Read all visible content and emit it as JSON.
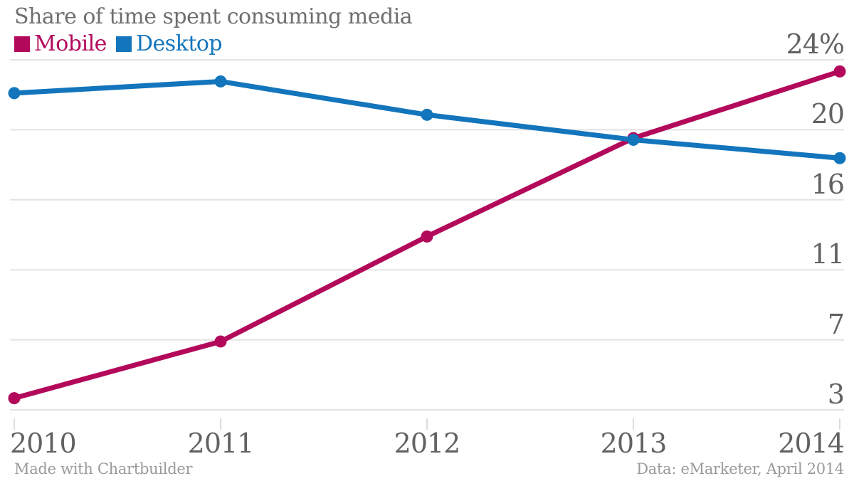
{
  "chart_data": {
    "type": "line",
    "title": "Share of time spent consuming media",
    "x": [
      "2010",
      "2011",
      "2012",
      "2013",
      "2014"
    ],
    "series": [
      {
        "name": "Mobile",
        "color": "#B3095B",
        "values": [
          3.7,
          7.1,
          13.4,
          19.3,
          23.3
        ]
      },
      {
        "name": "Desktop",
        "color": "#1375BC",
        "values": [
          22.0,
          22.7,
          20.7,
          19.2,
          18.1
        ]
      }
    ],
    "y_axis": {
      "min": 3,
      "max": 24,
      "side": "right",
      "tick_values": [
        24,
        19.8,
        15.6,
        11.4,
        7.2,
        3
      ],
      "tick_labels": [
        "24%",
        "20",
        "16",
        "11",
        "7",
        "3"
      ]
    },
    "grid": true,
    "legend_position": "top-left",
    "grid_color": "#E3E3E3",
    "tick_color": "#DCDCDC",
    "credit": "Made with Chartbuilder",
    "source": "Data: eMarketer, April 2014"
  }
}
